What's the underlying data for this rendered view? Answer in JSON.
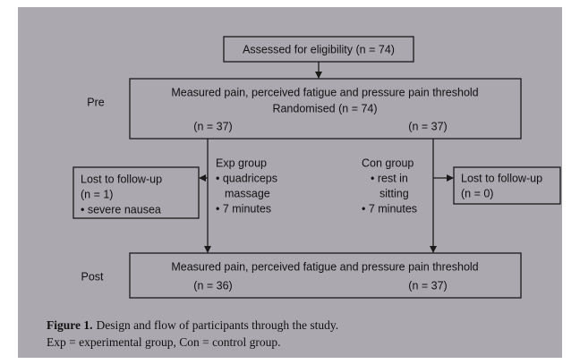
{
  "eligibility": "Assessed for eligibility (n = 74)",
  "pre": {
    "label": "Pre",
    "lines": [
      "Measured pain, perceived fatigue and pressure pain threshold",
      "Randomised (n = 74)"
    ],
    "left_n": "(n = 37)",
    "right_n": "(n = 37)"
  },
  "exp_lost": {
    "lines": [
      "Lost to follow-up",
      "(n = 1)",
      "• severe nausea"
    ]
  },
  "con_lost": {
    "lines": [
      "Lost to follow-up",
      "(n = 0)"
    ]
  },
  "exp_group": {
    "lines": [
      "Exp group",
      "• quadriceps",
      "massage",
      "• 7 minutes"
    ]
  },
  "con_group": {
    "lines": [
      "Con group",
      "• rest in",
      "sitting",
      "• 7 minutes"
    ]
  },
  "post": {
    "label": "Post",
    "line": "Measured pain, perceived fatigue and pressure pain threshold",
    "left_n": "(n = 36)",
    "right_n": "(n = 37)"
  },
  "caption": {
    "label": "Figure 1.",
    "text": "Design and flow of participants through the study.",
    "line2": "Exp = experimental group, Con = control group."
  }
}
